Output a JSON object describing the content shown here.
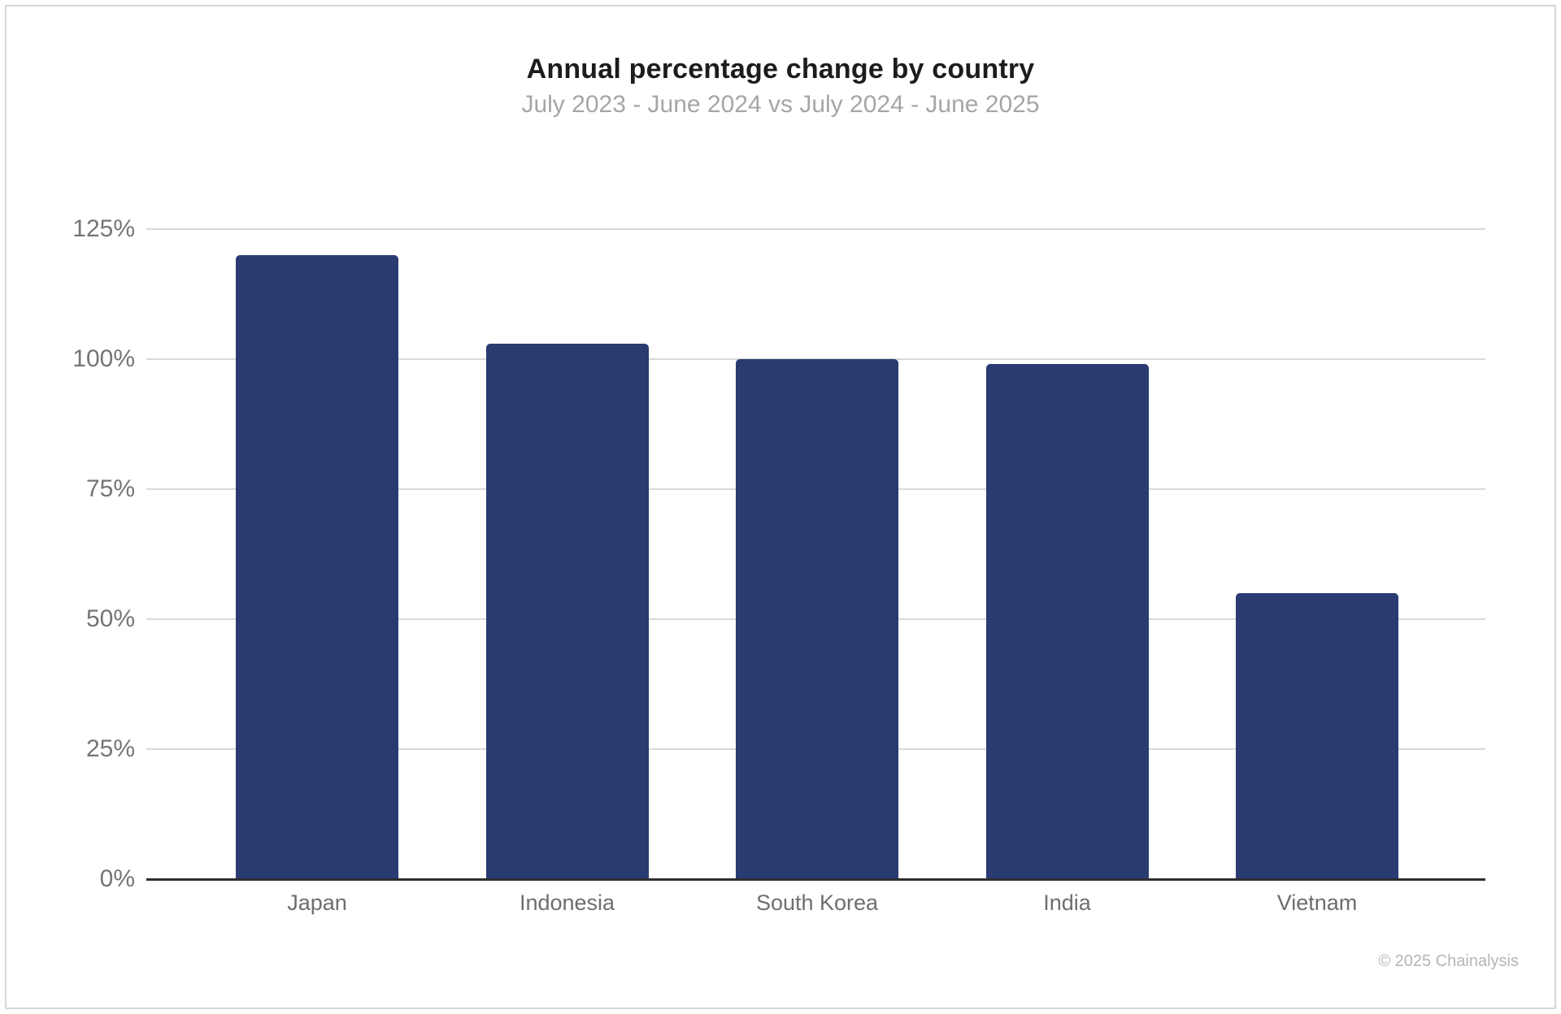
{
  "chart_data": {
    "type": "bar",
    "title": "Annual percentage change by country",
    "subtitle": "July 2023 - June 2024 vs July 2024 - June 2025",
    "categories": [
      "Japan",
      "Indonesia",
      "South Korea",
      "India",
      "Vietnam"
    ],
    "values": [
      120,
      103,
      100,
      99,
      55
    ],
    "value_unit": "%",
    "xlabel": "",
    "ylabel": "",
    "ylim": [
      0,
      125
    ],
    "yticks": [
      {
        "label": "0%",
        "value": 0
      },
      {
        "label": "25%",
        "value": 25
      },
      {
        "label": "50%",
        "value": 50
      },
      {
        "label": "75%",
        "value": 75
      },
      {
        "label": "100%",
        "value": 100
      },
      {
        "label": "125%",
        "value": 125
      }
    ],
    "grid": "horizontal gridlines every 25%, light gray",
    "legend": "none",
    "colors": {
      "bar": "#2A3B72",
      "gridline": "#D9D9D9",
      "axis_line": "#2F2F2F",
      "title": "#1C1C1C",
      "subtitle": "#A6A6A6",
      "y_tick_label": "#757575",
      "x_tick_label": "#6E6E6E"
    }
  },
  "footer": {
    "copyright": "© 2025 Chainalysis"
  }
}
